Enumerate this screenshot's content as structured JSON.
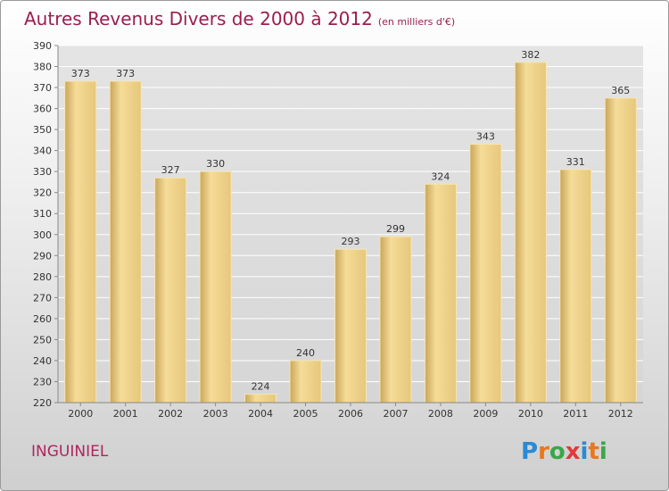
{
  "title": "Autres Revenus Divers de 2000 à 2012",
  "unit": "(en milliers d'€)",
  "location": "INGUINIEL",
  "logo": {
    "letters": [
      "P",
      "r",
      "o",
      "x",
      "i",
      "t",
      "i"
    ],
    "colors": [
      "#2a8ad5",
      "#e8781c",
      "#3aa64a",
      "#e23a3a",
      "#2a8ad5",
      "#e8781c",
      "#3aa64a"
    ]
  },
  "chart_data": {
    "type": "bar",
    "title": "Autres Revenus Divers de 2000 à 2012",
    "xlabel": "",
    "ylabel": "",
    "categories": [
      "2000",
      "2001",
      "2002",
      "2003",
      "2004",
      "2005",
      "2006",
      "2007",
      "2008",
      "2009",
      "2010",
      "2011",
      "2012"
    ],
    "values": [
      373,
      373,
      327,
      330,
      224,
      240,
      293,
      299,
      324,
      343,
      382,
      331,
      365
    ],
    "ylim": [
      220,
      390
    ],
    "yticks": [
      220,
      230,
      240,
      250,
      260,
      270,
      280,
      290,
      300,
      310,
      320,
      330,
      340,
      350,
      360,
      370,
      380,
      390
    ],
    "grid": true,
    "colors": {
      "bar_light": "#f5dc98",
      "bar_dark": "#c9a65a",
      "grid": "#ffffff",
      "axis_text": "#333333"
    }
  }
}
